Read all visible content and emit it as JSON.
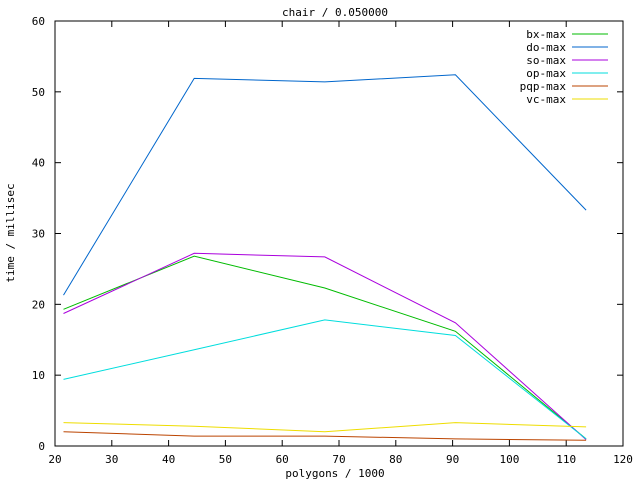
{
  "chart_data": {
    "type": "line",
    "title": "chair / 0.050000",
    "xlabel": "polygons / 1000",
    "ylabel": "time / millisec",
    "xlim": [
      20,
      120
    ],
    "ylim": [
      0,
      60
    ],
    "xticks": [
      20,
      30,
      40,
      50,
      60,
      70,
      80,
      90,
      100,
      110,
      120
    ],
    "yticks": [
      0,
      10,
      20,
      30,
      40,
      50,
      60
    ],
    "grid": false,
    "legend_position": "top-right",
    "x": [
      21.5,
      44.5,
      67.5,
      90.5,
      113.5
    ],
    "series": [
      {
        "name": "bx-max",
        "color": "#00bb00",
        "values": [
          19.3,
          26.8,
          22.3,
          16.2,
          1.0
        ]
      },
      {
        "name": "do-max",
        "color": "#0066cc",
        "values": [
          21.3,
          51.9,
          51.4,
          52.4,
          33.3
        ]
      },
      {
        "name": "so-max",
        "color": "#aa00dd",
        "values": [
          18.7,
          27.2,
          26.7,
          17.4,
          0.9
        ]
      },
      {
        "name": "op-max",
        "color": "#00dddd",
        "values": [
          9.4,
          13.6,
          17.8,
          15.6,
          1.0
        ]
      },
      {
        "name": "pqp-max",
        "color": "#bb4400",
        "values": [
          2.0,
          1.4,
          1.4,
          1.0,
          0.8
        ]
      },
      {
        "name": "vc-max",
        "color": "#eedd00",
        "values": [
          3.3,
          2.8,
          2.0,
          3.3,
          2.7
        ]
      }
    ]
  }
}
